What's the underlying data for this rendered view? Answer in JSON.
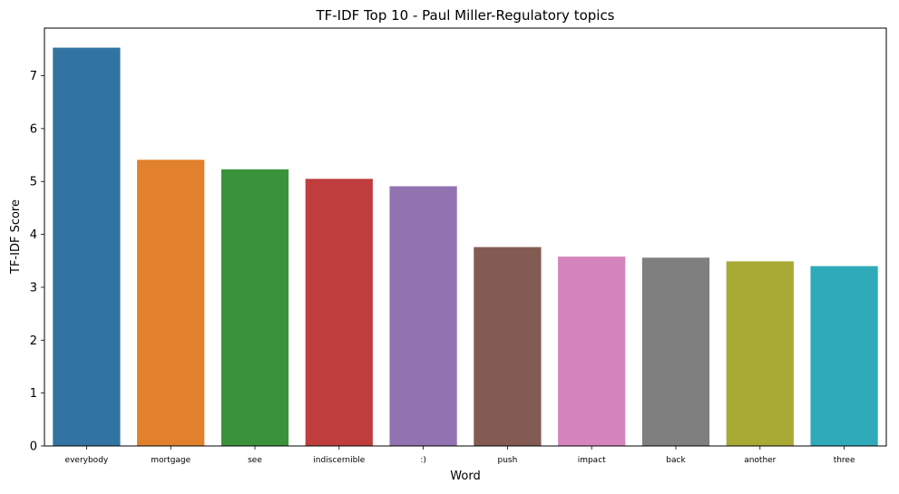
{
  "chart_data": {
    "type": "bar",
    "title": "TF-IDF Top 10 - Paul Miller-Regulatory topics",
    "xlabel": "Word",
    "ylabel": "TF-IDF Score",
    "categories": [
      "everybody",
      "mortgage",
      "see",
      "indiscernible",
      ":)",
      "push",
      "impact",
      "back",
      "another",
      "three"
    ],
    "values": [
      7.53,
      5.41,
      5.23,
      5.05,
      4.91,
      3.76,
      3.58,
      3.56,
      3.49,
      3.4
    ],
    "colors": [
      "#3274a1",
      "#e1812c",
      "#3a923a",
      "#c03d3e",
      "#9372b2",
      "#845b53",
      "#d684bd",
      "#7f7f7f",
      "#a9aa35",
      "#2eaab8"
    ],
    "ylim": [
      0,
      7.9
    ],
    "yticks": [
      0,
      1,
      2,
      3,
      4,
      5,
      6,
      7
    ],
    "grid": false,
    "legend": "none"
  }
}
